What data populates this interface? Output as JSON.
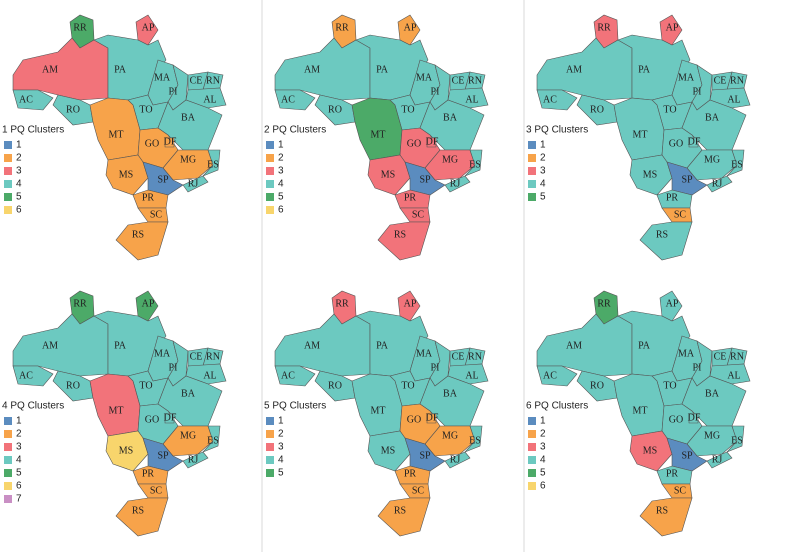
{
  "states": [
    "RR",
    "AP",
    "AM",
    "AC",
    "PA",
    "RO",
    "MA",
    "PI",
    "CE",
    "RN",
    "AL",
    "TO",
    "BA",
    "MT",
    "GO",
    "DF",
    "MG",
    "ES",
    "MS",
    "SP",
    "RJ",
    "PR",
    "SC",
    "RS"
  ],
  "cluster_colors": [
    "#5b8cbf",
    "#f7a34a",
    "#f2737a",
    "#6cc9c0",
    "#4caa68",
    "#f8d56c",
    "#c98fc4"
  ],
  "panels": [
    {
      "legend_title": "1 PQ Clusters",
      "legend": [
        "1",
        "2",
        "3",
        "4",
        "5",
        "6"
      ],
      "clusters": [
        5,
        3,
        3,
        4,
        4,
        4,
        4,
        4,
        4,
        4,
        4,
        4,
        4,
        2,
        2,
        2,
        2,
        4,
        2,
        1,
        4,
        2,
        2,
        2
      ]
    },
    {
      "legend_title": "2 PQ Clusters",
      "legend": [
        "1",
        "2",
        "3",
        "4",
        "5",
        "6"
      ],
      "clusters": [
        2,
        2,
        4,
        4,
        4,
        4,
        4,
        4,
        4,
        4,
        4,
        4,
        4,
        5,
        3,
        3,
        3,
        4,
        3,
        1,
        4,
        3,
        3,
        3
      ]
    },
    {
      "legend_title": "3 PQ Clusters",
      "legend": [
        "1",
        "2",
        "3",
        "4",
        "5"
      ],
      "clusters": [
        3,
        3,
        4,
        4,
        4,
        4,
        4,
        4,
        4,
        4,
        4,
        4,
        4,
        4,
        4,
        4,
        4,
        4,
        4,
        1,
        4,
        4,
        2,
        4
      ]
    },
    {
      "legend_title": "4 PQ Clusters",
      "legend": [
        "1",
        "2",
        "3",
        "4",
        "5",
        "6",
        "7"
      ],
      "clusters": [
        5,
        5,
        4,
        4,
        4,
        4,
        4,
        4,
        4,
        4,
        4,
        4,
        4,
        3,
        4,
        4,
        2,
        4,
        6,
        1,
        4,
        2,
        2,
        2
      ]
    },
    {
      "legend_title": "5 PQ Clusters",
      "legend": [
        "1",
        "2",
        "3",
        "4",
        "5"
      ],
      "clusters": [
        3,
        3,
        4,
        4,
        4,
        4,
        4,
        4,
        4,
        4,
        4,
        4,
        4,
        4,
        2,
        2,
        2,
        4,
        4,
        1,
        4,
        2,
        2,
        2
      ]
    },
    {
      "legend_title": "6 PQ Clusters",
      "legend": [
        "1",
        "2",
        "3",
        "4",
        "5",
        "6"
      ],
      "clusters": [
        5,
        4,
        4,
        4,
        4,
        4,
        4,
        4,
        4,
        4,
        4,
        4,
        4,
        4,
        4,
        4,
        4,
        4,
        3,
        1,
        4,
        4,
        2,
        2
      ]
    }
  ]
}
